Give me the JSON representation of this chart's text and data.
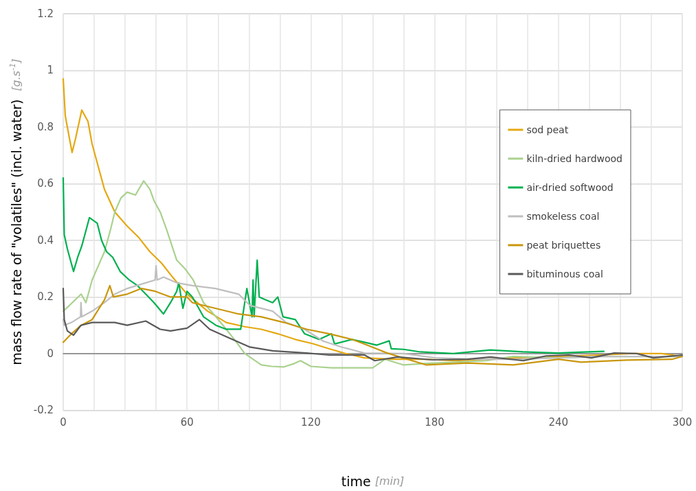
{
  "chart_data": {
    "type": "line",
    "xlabel": "time [min]",
    "ylabel": "mass flow rate of \"volatiles\" (incl. water)  [g.s$^{-1}$]",
    "xlim": [
      0,
      300
    ],
    "xticks": [
      0,
      {
        "value": 15,
        "label": null
      },
      {
        "value": 30,
        "label": null
      },
      {
        "value": 45,
        "label": null
      },
      60,
      {
        "value": 75,
        "label": null
      },
      {
        "value": 90,
        "label": null
      },
      {
        "value": 105,
        "label": null
      },
      120,
      {
        "value": 135,
        "label": null
      },
      {
        "value": 150,
        "label": null
      },
      {
        "value": 165,
        "label": null
      },
      180,
      {
        "value": 195,
        "label": null
      },
      {
        "value": 210,
        "label": null
      },
      {
        "value": 225,
        "label": null
      },
      240,
      {
        "value": 255,
        "label": null
      },
      {
        "value": 270,
        "label": null
      },
      {
        "value": 285,
        "label": null
      },
      300
    ],
    "ylim": [
      -0.2,
      1.2
    ],
    "yticks": [
      -0.2,
      0,
      0.2,
      0.4,
      0.6,
      0.8,
      1,
      1.2
    ],
    "grid": true,
    "legend": "right",
    "marker": "none",
    "line_style": "solid",
    "series": [
      {
        "name": "sod peat",
        "color": "#e5a812",
        "x": [
          0,
          1,
          2,
          4.3,
          6,
          9,
          12,
          14,
          17,
          20,
          25,
          31,
          36.6,
          42,
          47.6,
          53,
          60,
          70,
          79,
          88,
          96,
          104,
          112.5,
          121,
          129,
          137,
          146,
          160,
          175,
          190,
          205,
          220,
          240,
          260,
          275,
          290,
          300
        ],
        "values": [
          0.97,
          0.84,
          0.8,
          0.71,
          0.76,
          0.86,
          0.82,
          0.74,
          0.66,
          0.58,
          0.5,
          0.45,
          0.41,
          0.36,
          0.32,
          0.27,
          0.21,
          0.15,
          0.11,
          0.095,
          0.086,
          0.07,
          0.05,
          0.035,
          0.017,
          0.0,
          -0.015,
          -0.02,
          -0.02,
          -0.025,
          -0.02,
          -0.015,
          -0.01,
          -0.005,
          0.0,
          0.0,
          -0.01
        ]
      },
      {
        "name": "kiln-dried hardwood",
        "color": "#a9d18e",
        "x": [
          0,
          3,
          8.7,
          11,
          14,
          17,
          20,
          23,
          25,
          28,
          31,
          35,
          39,
          42,
          44,
          47,
          50,
          55,
          59,
          63,
          68,
          74,
          79,
          84,
          88,
          96,
          101,
          107,
          112,
          115,
          120,
          130,
          140,
          150,
          156,
          165,
          175,
          190,
          205,
          218,
          240,
          260,
          280,
          300
        ],
        "values": [
          0.15,
          0.17,
          0.21,
          0.18,
          0.26,
          0.31,
          0.36,
          0.44,
          0.5,
          0.55,
          0.57,
          0.56,
          0.61,
          0.58,
          0.54,
          0.5,
          0.44,
          0.33,
          0.3,
          0.26,
          0.18,
          0.13,
          0.086,
          0.04,
          0.0,
          -0.04,
          -0.045,
          -0.047,
          -0.035,
          -0.025,
          -0.045,
          -0.05,
          -0.05,
          -0.05,
          -0.02,
          -0.04,
          -0.035,
          -0.03,
          -0.025,
          -0.01,
          -0.015,
          -0.01,
          -0.01,
          -0.01
        ]
      },
      {
        "name": "air-dried softwood",
        "color": "#00b050",
        "x": [
          0,
          0.5,
          2,
          5,
          7,
          9,
          12.7,
          16.5,
          18.6,
          21,
          24,
          27.6,
          32,
          36,
          40,
          44,
          48.6,
          52,
          55,
          56,
          58,
          60,
          62.6,
          68,
          74,
          79,
          86,
          89,
          91.5,
          92,
          92.5,
          94,
          95,
          98,
          101.5,
          104,
          106.5,
          112.5,
          117,
          124,
          130,
          131.5,
          140,
          146,
          152,
          158,
          159,
          165,
          173,
          189,
          207,
          223,
          240,
          250,
          262
        ],
        "values": [
          0.62,
          0.42,
          0.37,
          0.29,
          0.34,
          0.38,
          0.48,
          0.46,
          0.4,
          0.36,
          0.34,
          0.29,
          0.26,
          0.24,
          0.21,
          0.18,
          0.14,
          0.18,
          0.22,
          0.25,
          0.16,
          0.22,
          0.2,
          0.13,
          0.1,
          0.086,
          0.086,
          0.23,
          0.13,
          0.26,
          0.13,
          0.33,
          0.2,
          0.19,
          0.18,
          0.2,
          0.13,
          0.12,
          0.07,
          0.05,
          0.07,
          0.034,
          0.05,
          0.04,
          0.03,
          0.045,
          0.017,
          0.015,
          0.006,
          0.0,
          0.013,
          0.006,
          0.002,
          0.005,
          0.008
        ]
      },
      {
        "name": "smokeless coal",
        "color": "#bfbfbf",
        "x": [
          0,
          0.4,
          4,
          8.4,
          8.6,
          9,
          14,
          20,
          25,
          31,
          40,
          44.5,
          45,
          45.5,
          48.6,
          55,
          62.6,
          73.8,
          85,
          90.5,
          101.5,
          108,
          117,
          126,
          135,
          146,
          165,
          180,
          200,
          220,
          240,
          260,
          280,
          300
        ],
        "values": [
          0.12,
          0.1,
          0.11,
          0.13,
          0.18,
          0.13,
          0.15,
          0.18,
          0.21,
          0.23,
          0.25,
          0.26,
          0.31,
          0.26,
          0.27,
          0.25,
          0.24,
          0.23,
          0.21,
          0.17,
          0.15,
          0.11,
          0.086,
          0.044,
          0.023,
          0.002,
          0.0,
          -0.015,
          -0.02,
          -0.02,
          -0.015,
          -0.01,
          -0.01,
          -0.01
        ]
      },
      {
        "name": "peat briquettes",
        "color": "#c9960c",
        "x": [
          0,
          4,
          8.7,
          14,
          20,
          22.6,
          24.3,
          31,
          38,
          44.6,
          52,
          60,
          62.6,
          73.8,
          85,
          96,
          107,
          118,
          129,
          140,
          146,
          157,
          176,
          196,
          218,
          240,
          251,
          273,
          295,
          300
        ],
        "values": [
          0.04,
          0.07,
          0.1,
          0.12,
          0.19,
          0.24,
          0.2,
          0.21,
          0.23,
          0.22,
          0.2,
          0.2,
          0.18,
          0.16,
          0.14,
          0.13,
          0.11,
          0.086,
          0.07,
          0.05,
          0.034,
          0.002,
          -0.04,
          -0.033,
          -0.04,
          -0.02,
          -0.03,
          -0.023,
          -0.02,
          -0.01
        ]
      },
      {
        "name": "bituminous coal",
        "color": "#595959",
        "x": [
          0,
          0.5,
          2,
          5,
          8.6,
          14,
          25,
          31,
          40,
          47,
          52,
          60,
          66,
          71,
          79,
          90.5,
          101.5,
          118,
          129,
          146,
          151,
          162,
          179,
          196,
          207,
          223,
          234,
          245,
          256,
          267,
          278,
          286,
          300
        ],
        "values": [
          0.23,
          0.12,
          0.08,
          0.065,
          0.1,
          0.11,
          0.11,
          0.1,
          0.115,
          0.086,
          0.08,
          0.09,
          0.12,
          0.086,
          0.06,
          0.023,
          0.01,
          0.002,
          -0.005,
          -0.005,
          -0.025,
          -0.012,
          -0.022,
          -0.02,
          -0.012,
          -0.025,
          -0.008,
          -0.005,
          -0.015,
          0.002,
          0.0,
          -0.015,
          -0.005
        ]
      }
    ]
  }
}
